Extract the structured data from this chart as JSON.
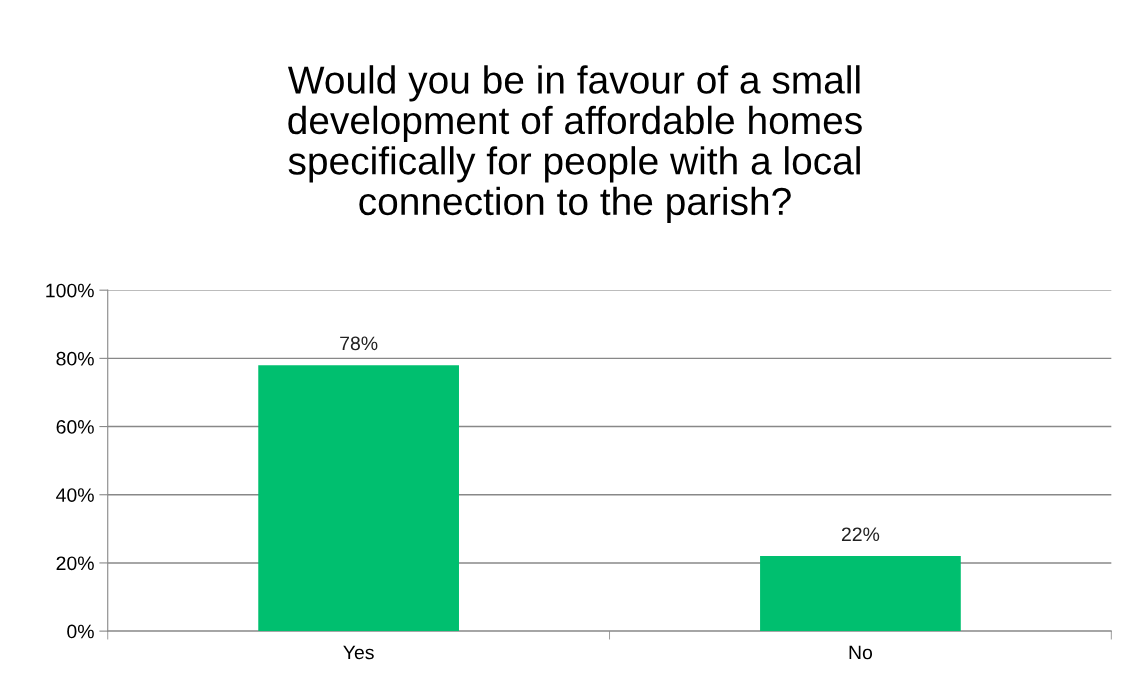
{
  "chart_data": {
    "type": "bar",
    "title": "Would you be in favour of a small\ndevelopment of affordable homes\nspecifically for people with a local\nconnection to the parish?",
    "categories": [
      "Yes",
      "No"
    ],
    "values": [
      78,
      22
    ],
    "value_labels": [
      "78%",
      "22%"
    ],
    "color": "#00bf6f",
    "ylim": [
      0,
      100
    ],
    "yticks": [
      {
        "value": 0,
        "label": "0%"
      },
      {
        "value": 20,
        "label": "20%"
      },
      {
        "value": 40,
        "label": "40%"
      },
      {
        "value": 60,
        "label": "60%"
      },
      {
        "value": 80,
        "label": "80%"
      },
      {
        "value": 100,
        "label": "100%"
      }
    ],
    "grid": "y",
    "legend": false
  }
}
